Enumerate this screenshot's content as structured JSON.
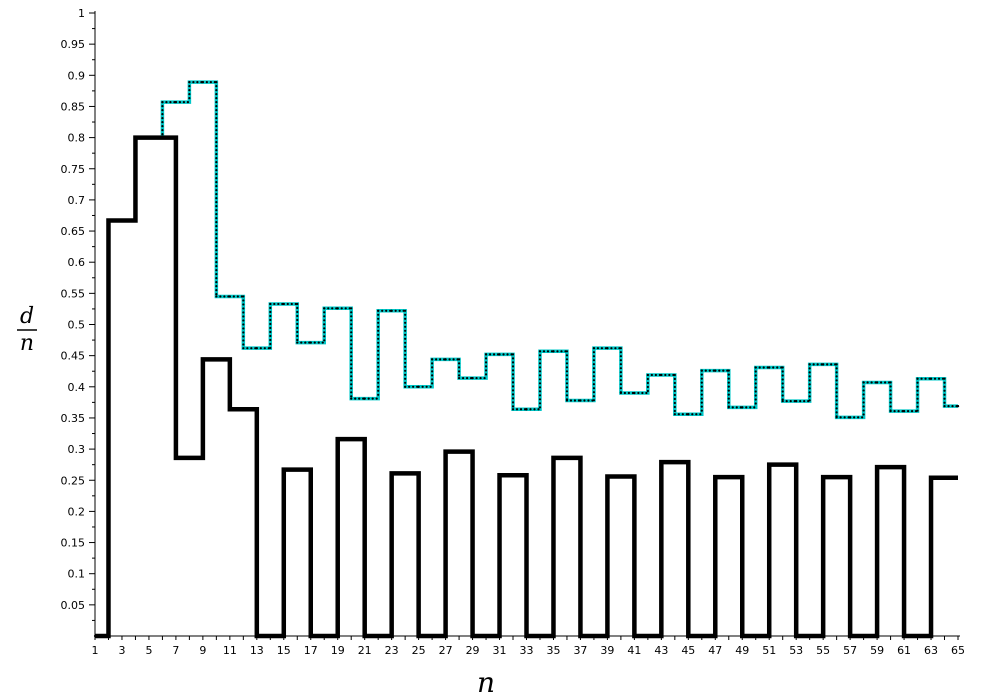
{
  "chart_data": {
    "type": "line",
    "step": true,
    "xlabel": "n",
    "ylabel_numerator": "d",
    "ylabel_denominator": "n",
    "xlim": [
      1,
      65
    ],
    "ylim": [
      0,
      1
    ],
    "x_ticks": [
      "1",
      "3",
      "5",
      "7",
      "9",
      "11",
      "13",
      "15",
      "17",
      "19",
      "21",
      "23",
      "25",
      "27",
      "29",
      "31",
      "33",
      "35",
      "37",
      "39",
      "41",
      "43",
      "45",
      "47",
      "49",
      "51",
      "53",
      "55",
      "57",
      "59",
      "61",
      "63",
      "65"
    ],
    "y_ticks": [
      "0.05",
      "0.1",
      "0.15",
      "0.2",
      "0.25",
      "0.3",
      "0.35",
      "0.4",
      "0.45",
      "0.5",
      "0.55",
      "0.6",
      "0.65",
      "0.7",
      "0.75",
      "0.8",
      "0.85",
      "0.9",
      "0.95",
      "1"
    ],
    "grid": false,
    "series": [
      {
        "color": "#000000",
        "style": "thick-solid",
        "points": [
          [
            1,
            0
          ],
          [
            2,
            0.667
          ],
          [
            3,
            0.667
          ],
          [
            4,
            0.8
          ],
          [
            5,
            0.8
          ],
          [
            6,
            0.8
          ],
          [
            7,
            0.286
          ],
          [
            8,
            0.286
          ],
          [
            9,
            0.444
          ],
          [
            10,
            0.444
          ],
          [
            11,
            0.364
          ],
          [
            12,
            0.364
          ],
          [
            13,
            0
          ],
          [
            14,
            0
          ],
          [
            15,
            0.267
          ],
          [
            16,
            0.267
          ],
          [
            17,
            0
          ],
          [
            18,
            0
          ],
          [
            19,
            0.316
          ],
          [
            20,
            0.316
          ],
          [
            21,
            0
          ],
          [
            22,
            0
          ],
          [
            23,
            0.261
          ],
          [
            24,
            0.261
          ],
          [
            25,
            0
          ],
          [
            26,
            0
          ],
          [
            27,
            0.296
          ],
          [
            28,
            0.296
          ],
          [
            29,
            0
          ],
          [
            30,
            0
          ],
          [
            31,
            0.258
          ],
          [
            32,
            0.258
          ],
          [
            33,
            0
          ],
          [
            34,
            0
          ],
          [
            35,
            0.286
          ],
          [
            36,
            0.286
          ],
          [
            37,
            0
          ],
          [
            38,
            0
          ],
          [
            39,
            0.256
          ],
          [
            40,
            0.256
          ],
          [
            41,
            0
          ],
          [
            42,
            0
          ],
          [
            43,
            0.279
          ],
          [
            44,
            0.279
          ],
          [
            45,
            0
          ],
          [
            46,
            0
          ],
          [
            47,
            0.255
          ],
          [
            48,
            0.255
          ],
          [
            49,
            0
          ],
          [
            50,
            0
          ],
          [
            51,
            0.275
          ],
          [
            52,
            0.275
          ],
          [
            53,
            0
          ],
          [
            54,
            0
          ],
          [
            55,
            0.255
          ],
          [
            56,
            0.255
          ],
          [
            57,
            0
          ],
          [
            58,
            0
          ],
          [
            59,
            0.271
          ],
          [
            60,
            0.271
          ],
          [
            61,
            0
          ],
          [
            62,
            0
          ],
          [
            63,
            0.254
          ],
          [
            64,
            0.254
          ]
        ]
      },
      {
        "color": "#00c8c8",
        "style": "dotted-markers",
        "points": [
          [
            1,
            0
          ],
          [
            2,
            0.667
          ],
          [
            3,
            0.667
          ],
          [
            4,
            0.8
          ],
          [
            5,
            0.8
          ],
          [
            6,
            0.857
          ],
          [
            7,
            0.857
          ],
          [
            8,
            0.889
          ],
          [
            9,
            0.889
          ],
          [
            10,
            0.545
          ],
          [
            11,
            0.545
          ],
          [
            12,
            0.462
          ],
          [
            13,
            0.462
          ],
          [
            14,
            0.533
          ],
          [
            15,
            0.533
          ],
          [
            16,
            0.471
          ],
          [
            17,
            0.471
          ],
          [
            18,
            0.526
          ],
          [
            19,
            0.526
          ],
          [
            20,
            0.381
          ],
          [
            21,
            0.381
          ],
          [
            22,
            0.522
          ],
          [
            23,
            0.522
          ],
          [
            24,
            0.4
          ],
          [
            25,
            0.4
          ],
          [
            26,
            0.444
          ],
          [
            27,
            0.444
          ],
          [
            28,
            0.414
          ],
          [
            29,
            0.414
          ],
          [
            30,
            0.452
          ],
          [
            31,
            0.452
          ],
          [
            32,
            0.364
          ],
          [
            33,
            0.364
          ],
          [
            34,
            0.457
          ],
          [
            35,
            0.457
          ],
          [
            36,
            0.378
          ],
          [
            37,
            0.378
          ],
          [
            38,
            0.462
          ],
          [
            39,
            0.462
          ],
          [
            40,
            0.39
          ],
          [
            41,
            0.39
          ],
          [
            42,
            0.419
          ],
          [
            43,
            0.419
          ],
          [
            44,
            0.356
          ],
          [
            45,
            0.356
          ],
          [
            46,
            0.426
          ],
          [
            47,
            0.426
          ],
          [
            48,
            0.367
          ],
          [
            49,
            0.367
          ],
          [
            50,
            0.431
          ],
          [
            51,
            0.431
          ],
          [
            52,
            0.377
          ],
          [
            53,
            0.377
          ],
          [
            54,
            0.436
          ],
          [
            55,
            0.436
          ],
          [
            56,
            0.351
          ],
          [
            57,
            0.351
          ],
          [
            58,
            0.407
          ],
          [
            59,
            0.407
          ],
          [
            60,
            0.361
          ],
          [
            61,
            0.361
          ],
          [
            62,
            0.413
          ],
          [
            63,
            0.413
          ],
          [
            64,
            0.369
          ],
          [
            65,
            0.369
          ]
        ]
      }
    ]
  }
}
